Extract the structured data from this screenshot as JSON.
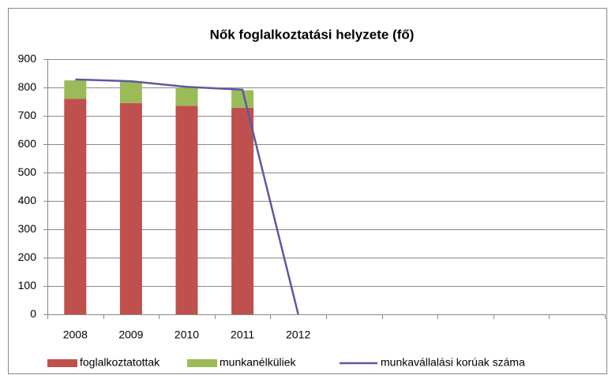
{
  "chart_data": {
    "type": "bar",
    "stacked": true,
    "title": "Nők foglalkoztatási helyzete (fő)",
    "categories": [
      "2008",
      "2009",
      "2010",
      "2011",
      "2012",
      null,
      null,
      null,
      null,
      null
    ],
    "series": [
      {
        "name": "foglalkoztatottak",
        "type": "bar",
        "color": "#c0504d",
        "values": [
          760,
          745,
          735,
          728,
          null,
          null,
          null,
          null,
          null,
          null
        ]
      },
      {
        "name": "munkanélküliek",
        "type": "bar",
        "color": "#9bbb59",
        "values": [
          65,
          75,
          65,
          62,
          null,
          null,
          null,
          null,
          null,
          null
        ]
      },
      {
        "name": "munkavállalási korúak száma",
        "type": "line",
        "color": "#5a5aa0",
        "values": [
          828,
          822,
          802,
          792,
          0,
          null,
          null,
          null,
          null,
          null
        ]
      }
    ],
    "ylim": [
      0,
      900
    ],
    "yticks": [
      0,
      100,
      200,
      300,
      400,
      500,
      600,
      700,
      800,
      900
    ],
    "grid": true,
    "legend": "bottom"
  }
}
